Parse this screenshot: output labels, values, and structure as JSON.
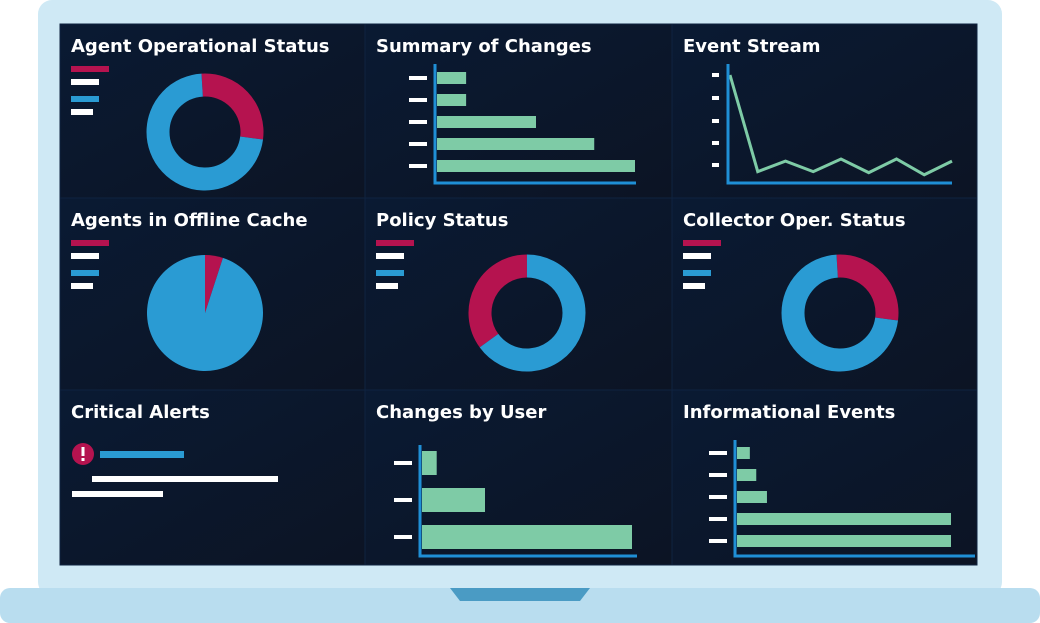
{
  "panels": [
    {
      "title": "Agent Operational Status",
      "chart": {
        "type": "donut",
        "values": [
          28,
          72
        ],
        "colors": [
          "#b5134f",
          "#2a9bd3"
        ]
      }
    },
    {
      "title": "Summary of Changes",
      "chart": {
        "type": "hbar",
        "values": [
          5,
          5,
          17,
          27,
          34
        ],
        "color": "#7ecba6"
      }
    },
    {
      "title": "Event Stream",
      "chart": {
        "type": "line",
        "values": [
          100,
          8,
          18,
          8,
          20,
          7,
          20,
          5,
          18
        ],
        "color": "#7ecba6"
      }
    },
    {
      "title": "Agents in Offline Cache",
      "chart": {
        "type": "pie",
        "values": [
          5,
          95
        ],
        "colors": [
          "#b5134f",
          "#2a9bd3"
        ]
      }
    },
    {
      "title": "Policy Status",
      "chart": {
        "type": "donut",
        "values": [
          35,
          65
        ],
        "colors": [
          "#b5134f",
          "#2a9bd3"
        ]
      }
    },
    {
      "title": "Collector Oper. Status",
      "chart": {
        "type": "donut",
        "values": [
          28,
          72
        ],
        "colors": [
          "#b5134f",
          "#2a9bd3"
        ]
      }
    },
    {
      "title": "Critical Alerts"
    },
    {
      "title": "Changes by User",
      "chart": {
        "type": "hbar",
        "values": [
          7,
          30,
          100
        ],
        "color": "#7ecba6"
      }
    },
    {
      "title": "Informational Events",
      "chart": {
        "type": "hbar",
        "values": [
          6,
          9,
          14,
          100,
          100
        ],
        "color": "#7ecba6"
      }
    }
  ]
}
